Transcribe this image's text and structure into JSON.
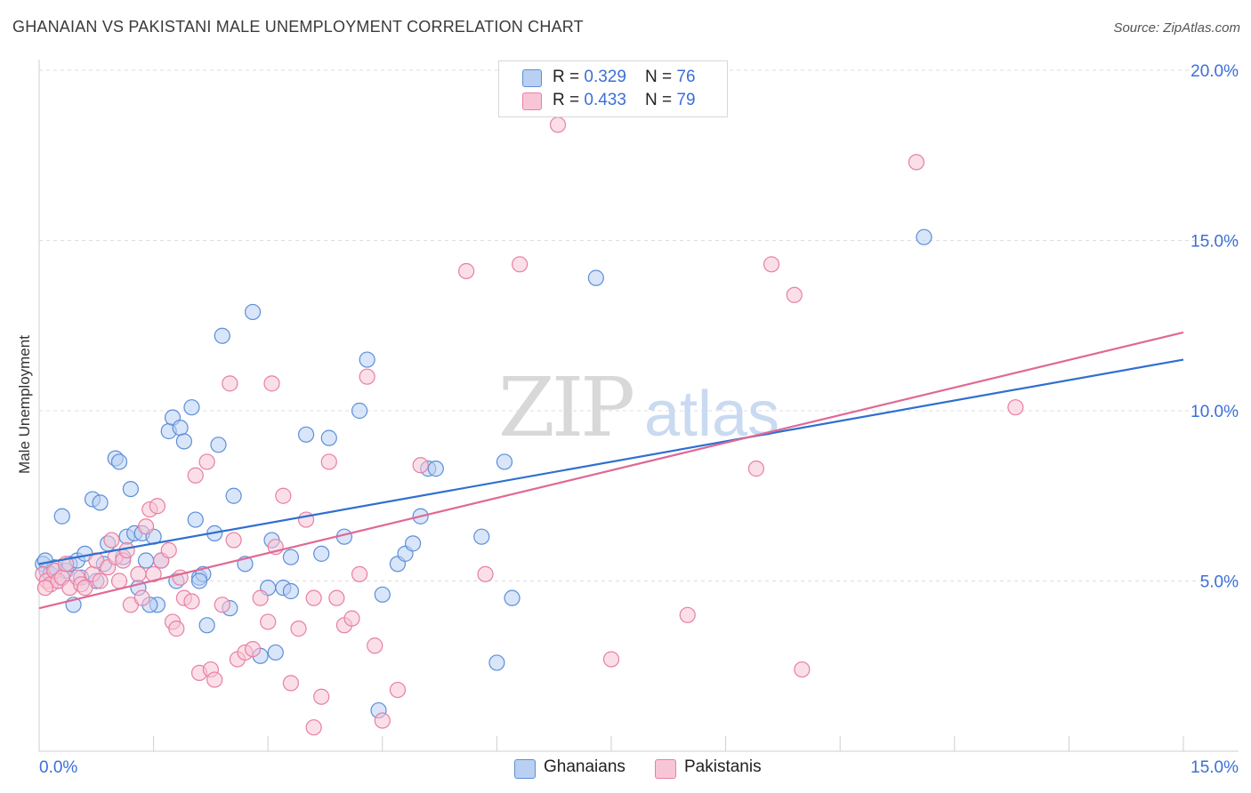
{
  "title": "GHANAIAN VS PAKISTANI MALE UNEMPLOYMENT CORRELATION CHART",
  "source": "Source: ZipAtlas.com",
  "watermark": {
    "zip": "ZIP",
    "atlas": "atlas"
  },
  "colors": {
    "ghanaians": "#5b8fd9",
    "ghanaians_fill": "#b9d0f2",
    "ghanaians_line": "#2f6fd0",
    "pakistanis": "#e87fa3",
    "pakistanis_fill": "#f8c5d6",
    "pakistanis_line": "#e06893",
    "tick_label": "#3b6fd6",
    "grid": "#dddddd"
  },
  "legend": {
    "rows": [
      {
        "r_label": "R = ",
        "r_value": "0.329",
        "n_label": "N = ",
        "n_value": "76"
      },
      {
        "r_label": "R = ",
        "r_value": "0.433",
        "n_label": "N = ",
        "n_value": "79"
      }
    ]
  },
  "chart_data": {
    "type": "scatter",
    "title": "GHANAIAN VS PAKISTANI MALE UNEMPLOYMENT CORRELATION CHART",
    "xlabel": "",
    "ylabel": "Male Unemployment",
    "xlim": [
      0,
      15
    ],
    "ylim": [
      0,
      20
    ],
    "x_tick_labels": [
      "0.0%",
      "15.0%"
    ],
    "y_ticks": [
      5,
      10,
      15,
      20
    ],
    "y_tick_labels": [
      "5.0%",
      "10.0%",
      "15.0%",
      "20.0%"
    ],
    "grid": true,
    "series": [
      {
        "name": "Ghanaians",
        "r": 0.329,
        "n": 76,
        "trend": {
          "x": [
            0,
            15
          ],
          "y": [
            5.5,
            11.5
          ]
        },
        "points": [
          [
            0.05,
            5.5
          ],
          [
            0.1,
            5.3
          ],
          [
            0.15,
            5.2
          ],
          [
            0.2,
            5.4
          ],
          [
            0.25,
            5.0
          ],
          [
            0.3,
            6.9
          ],
          [
            0.35,
            5.3
          ],
          [
            0.4,
            5.5
          ],
          [
            0.5,
            5.6
          ],
          [
            0.55,
            5.1
          ],
          [
            0.6,
            5.8
          ],
          [
            0.7,
            7.4
          ],
          [
            0.75,
            5.0
          ],
          [
            0.8,
            7.3
          ],
          [
            0.85,
            5.5
          ],
          [
            0.9,
            6.1
          ],
          [
            1.0,
            8.6
          ],
          [
            1.05,
            8.5
          ],
          [
            1.1,
            5.7
          ],
          [
            1.15,
            6.3
          ],
          [
            1.2,
            7.7
          ],
          [
            1.25,
            6.4
          ],
          [
            1.3,
            4.8
          ],
          [
            1.35,
            6.4
          ],
          [
            1.4,
            5.6
          ],
          [
            1.5,
            6.3
          ],
          [
            1.55,
            4.3
          ],
          [
            1.6,
            5.6
          ],
          [
            1.7,
            9.4
          ],
          [
            1.75,
            9.8
          ],
          [
            1.8,
            5.0
          ],
          [
            1.85,
            9.5
          ],
          [
            1.9,
            9.1
          ],
          [
            2.0,
            10.1
          ],
          [
            2.05,
            6.8
          ],
          [
            2.1,
            5.1
          ],
          [
            2.15,
            5.2
          ],
          [
            2.2,
            3.7
          ],
          [
            2.3,
            6.4
          ],
          [
            2.35,
            9.0
          ],
          [
            2.4,
            12.2
          ],
          [
            2.5,
            4.2
          ],
          [
            2.55,
            7.5
          ],
          [
            2.7,
            5.5
          ],
          [
            2.8,
            12.9
          ],
          [
            2.9,
            2.8
          ],
          [
            3.0,
            4.8
          ],
          [
            3.05,
            6.2
          ],
          [
            3.1,
            2.9
          ],
          [
            3.2,
            4.8
          ],
          [
            3.3,
            5.7
          ],
          [
            3.5,
            9.3
          ],
          [
            3.7,
            5.8
          ],
          [
            3.8,
            9.2
          ],
          [
            4.0,
            6.3
          ],
          [
            4.2,
            10.0
          ],
          [
            4.3,
            11.5
          ],
          [
            4.5,
            4.6
          ],
          [
            4.7,
            5.5
          ],
          [
            4.8,
            5.8
          ],
          [
            4.9,
            6.1
          ],
          [
            5.0,
            6.9
          ],
          [
            5.1,
            8.3
          ],
          [
            5.2,
            8.3
          ],
          [
            5.8,
            6.3
          ],
          [
            6.0,
            2.6
          ],
          [
            6.1,
            8.5
          ],
          [
            6.2,
            4.5
          ],
          [
            7.3,
            13.9
          ],
          [
            11.6,
            15.1
          ],
          [
            0.45,
            4.3
          ],
          [
            1.45,
            4.3
          ],
          [
            2.1,
            5.0
          ],
          [
            4.45,
            1.2
          ],
          [
            3.3,
            4.7
          ],
          [
            0.08,
            5.6
          ]
        ]
      },
      {
        "name": "Pakistanis",
        "r": 0.433,
        "n": 79,
        "trend": {
          "x": [
            0,
            15
          ],
          "y": [
            4.2,
            12.3
          ]
        },
        "points": [
          [
            0.05,
            5.2
          ],
          [
            0.1,
            5.0
          ],
          [
            0.15,
            4.9
          ],
          [
            0.2,
            5.3
          ],
          [
            0.25,
            5.0
          ],
          [
            0.3,
            5.1
          ],
          [
            0.35,
            5.5
          ],
          [
            0.4,
            4.8
          ],
          [
            0.5,
            5.1
          ],
          [
            0.55,
            4.9
          ],
          [
            0.6,
            4.8
          ],
          [
            0.7,
            5.2
          ],
          [
            0.75,
            5.6
          ],
          [
            0.8,
            5.0
          ],
          [
            0.9,
            5.4
          ],
          [
            0.95,
            6.2
          ],
          [
            1.0,
            5.7
          ],
          [
            1.05,
            5.0
          ],
          [
            1.1,
            5.6
          ],
          [
            1.15,
            5.9
          ],
          [
            1.2,
            4.3
          ],
          [
            1.3,
            5.2
          ],
          [
            1.35,
            4.5
          ],
          [
            1.4,
            6.6
          ],
          [
            1.45,
            7.1
          ],
          [
            1.5,
            5.2
          ],
          [
            1.55,
            7.2
          ],
          [
            1.6,
            5.6
          ],
          [
            1.7,
            5.9
          ],
          [
            1.75,
            3.8
          ],
          [
            1.8,
            3.6
          ],
          [
            1.85,
            5.1
          ],
          [
            1.9,
            4.5
          ],
          [
            2.0,
            4.4
          ],
          [
            2.05,
            8.1
          ],
          [
            2.1,
            2.3
          ],
          [
            2.2,
            8.5
          ],
          [
            2.25,
            2.4
          ],
          [
            2.3,
            2.1
          ],
          [
            2.4,
            4.3
          ],
          [
            2.5,
            10.8
          ],
          [
            2.55,
            6.2
          ],
          [
            2.6,
            2.7
          ],
          [
            2.7,
            2.9
          ],
          [
            2.8,
            3.0
          ],
          [
            2.9,
            4.5
          ],
          [
            3.0,
            3.8
          ],
          [
            3.05,
            10.8
          ],
          [
            3.1,
            6.0
          ],
          [
            3.2,
            7.5
          ],
          [
            3.3,
            2.0
          ],
          [
            3.4,
            3.6
          ],
          [
            3.5,
            6.8
          ],
          [
            3.6,
            0.7
          ],
          [
            3.7,
            1.6
          ],
          [
            3.8,
            8.5
          ],
          [
            3.9,
            4.5
          ],
          [
            4.0,
            3.7
          ],
          [
            4.1,
            3.9
          ],
          [
            4.2,
            5.2
          ],
          [
            4.3,
            11.0
          ],
          [
            4.4,
            3.1
          ],
          [
            4.5,
            0.9
          ],
          [
            4.7,
            1.8
          ],
          [
            5.0,
            8.4
          ],
          [
            5.6,
            14.1
          ],
          [
            5.85,
            5.2
          ],
          [
            6.3,
            14.3
          ],
          [
            6.8,
            18.4
          ],
          [
            7.5,
            2.7
          ],
          [
            8.5,
            4.0
          ],
          [
            9.4,
            8.3
          ],
          [
            9.6,
            14.3
          ],
          [
            9.9,
            13.4
          ],
          [
            10.0,
            2.4
          ],
          [
            11.5,
            17.3
          ],
          [
            12.8,
            10.1
          ],
          [
            0.08,
            4.8
          ],
          [
            3.6,
            4.5
          ]
        ]
      }
    ]
  }
}
